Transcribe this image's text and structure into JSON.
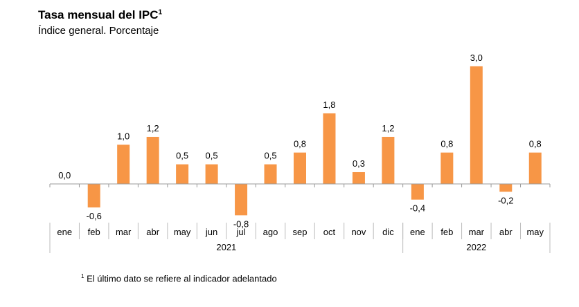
{
  "chart_data": {
    "type": "bar",
    "title": "Tasa mensual del IPC",
    "title_superscript": "1",
    "subtitle": "Índice general. Porcentaje",
    "categories": [
      "ene",
      "feb",
      "mar",
      "abr",
      "may",
      "jun",
      "jul",
      "ago",
      "sep",
      "oct",
      "nov",
      "dic",
      "ene",
      "feb",
      "mar",
      "abr",
      "may"
    ],
    "years": [
      {
        "label": "2021",
        "months": 12
      },
      {
        "label": "2022",
        "months": 5
      }
    ],
    "values": [
      0.0,
      -0.6,
      1.0,
      1.2,
      0.5,
      0.5,
      -0.8,
      0.5,
      0.8,
      1.8,
      0.3,
      1.2,
      -0.4,
      0.8,
      3.0,
      -0.2,
      0.8
    ],
    "value_labels": [
      "0,0",
      "-0,6",
      "1,0",
      "1,2",
      "0,5",
      "0,5",
      "-0,8",
      "0,5",
      "0,8",
      "1,8",
      "0,3",
      "1,2",
      "-0,4",
      "0,8",
      "3,0",
      "-0,2",
      "0,8"
    ],
    "bar_color": "#f79646",
    "grid": false,
    "footnote_marker": "1",
    "footnote": "El último dato se refiere al indicador adelantado"
  }
}
